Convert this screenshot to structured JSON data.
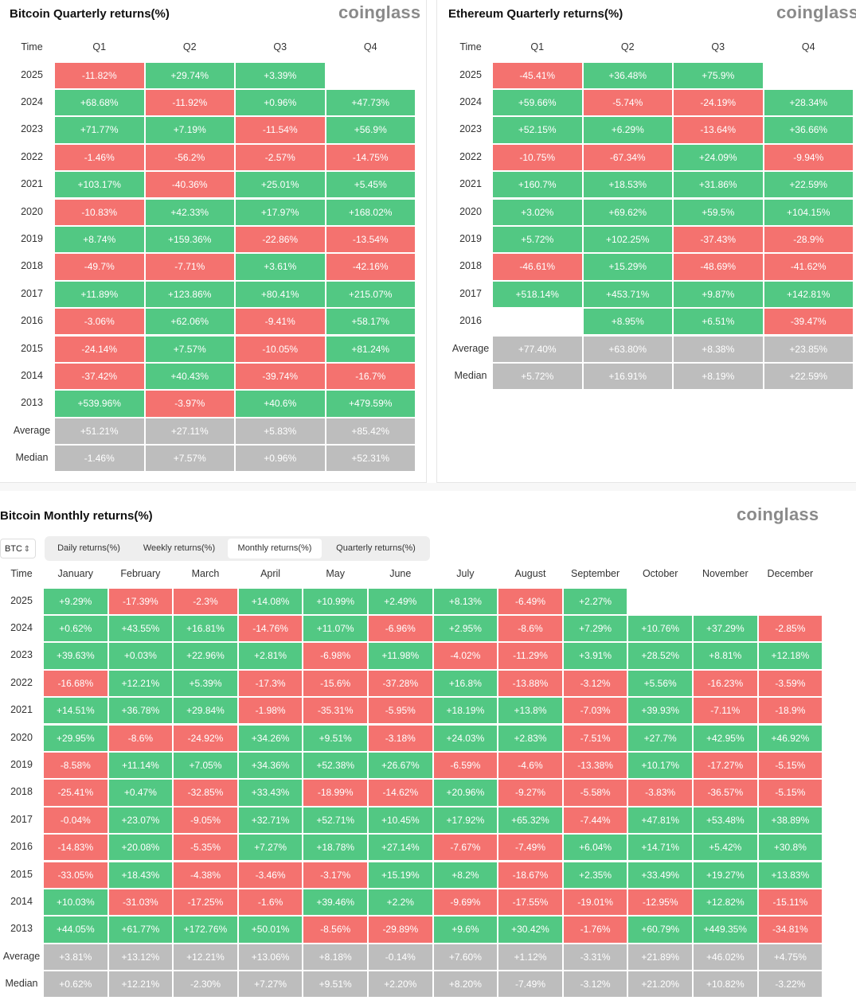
{
  "btc_quarterly": {
    "title": "Bitcoin Quarterly returns(%)",
    "logo": "coinglass",
    "time_label": "Time",
    "columns": [
      "Q1",
      "Q2",
      "Q3",
      "Q4"
    ],
    "rows": [
      {
        "label": "2025",
        "values": [
          "-11.82%",
          "+29.74%",
          "+3.39%",
          ""
        ]
      },
      {
        "label": "2024",
        "values": [
          "+68.68%",
          "-11.92%",
          "+0.96%",
          "+47.73%"
        ]
      },
      {
        "label": "2023",
        "values": [
          "+71.77%",
          "+7.19%",
          "-11.54%",
          "+56.9%"
        ]
      },
      {
        "label": "2022",
        "values": [
          "-1.46%",
          "-56.2%",
          "-2.57%",
          "-14.75%"
        ]
      },
      {
        "label": "2021",
        "values": [
          "+103.17%",
          "-40.36%",
          "+25.01%",
          "+5.45%"
        ]
      },
      {
        "label": "2020",
        "values": [
          "-10.83%",
          "+42.33%",
          "+17.97%",
          "+168.02%"
        ]
      },
      {
        "label": "2019",
        "values": [
          "+8.74%",
          "+159.36%",
          "-22.86%",
          "-13.54%"
        ]
      },
      {
        "label": "2018",
        "values": [
          "-49.7%",
          "-7.71%",
          "+3.61%",
          "-42.16%"
        ]
      },
      {
        "label": "2017",
        "values": [
          "+11.89%",
          "+123.86%",
          "+80.41%",
          "+215.07%"
        ]
      },
      {
        "label": "2016",
        "values": [
          "-3.06%",
          "+62.06%",
          "-9.41%",
          "+58.17%"
        ]
      },
      {
        "label": "2015",
        "values": [
          "-24.14%",
          "+7.57%",
          "-10.05%",
          "+81.24%"
        ]
      },
      {
        "label": "2014",
        "values": [
          "-37.42%",
          "+40.43%",
          "-39.74%",
          "-16.7%"
        ]
      },
      {
        "label": "2013",
        "values": [
          "+539.96%",
          "-3.97%",
          "+40.6%",
          "+479.59%"
        ]
      }
    ],
    "summary": [
      {
        "label": "Average",
        "values": [
          "+51.21%",
          "+27.11%",
          "+5.83%",
          "+85.42%"
        ]
      },
      {
        "label": "Median",
        "values": [
          "-1.46%",
          "+7.57%",
          "+0.96%",
          "+52.31%"
        ]
      }
    ]
  },
  "eth_quarterly": {
    "title": "Ethereum Quarterly returns(%)",
    "logo": "coinglass",
    "time_label": "Time",
    "columns": [
      "Q1",
      "Q2",
      "Q3",
      "Q4"
    ],
    "rows": [
      {
        "label": "2025",
        "values": [
          "-45.41%",
          "+36.48%",
          "+75.9%",
          ""
        ]
      },
      {
        "label": "2024",
        "values": [
          "+59.66%",
          "-5.74%",
          "-24.19%",
          "+28.34%"
        ]
      },
      {
        "label": "2023",
        "values": [
          "+52.15%",
          "+6.29%",
          "-13.64%",
          "+36.66%"
        ]
      },
      {
        "label": "2022",
        "values": [
          "-10.75%",
          "-67.34%",
          "+24.09%",
          "-9.94%"
        ]
      },
      {
        "label": "2021",
        "values": [
          "+160.7%",
          "+18.53%",
          "+31.86%",
          "+22.59%"
        ]
      },
      {
        "label": "2020",
        "values": [
          "+3.02%",
          "+69.62%",
          "+59.5%",
          "+104.15%"
        ]
      },
      {
        "label": "2019",
        "values": [
          "+5.72%",
          "+102.25%",
          "-37.43%",
          "-28.9%"
        ]
      },
      {
        "label": "2018",
        "values": [
          "-46.61%",
          "+15.29%",
          "-48.69%",
          "-41.62%"
        ]
      },
      {
        "label": "2017",
        "values": [
          "+518.14%",
          "+453.71%",
          "+9.87%",
          "+142.81%"
        ]
      },
      {
        "label": "2016",
        "values": [
          "",
          "+8.95%",
          "+6.51%",
          "-39.47%"
        ]
      }
    ],
    "summary": [
      {
        "label": "Average",
        "values": [
          "+77.40%",
          "+63.80%",
          "+8.38%",
          "+23.85%"
        ]
      },
      {
        "label": "Median",
        "values": [
          "+5.72%",
          "+16.91%",
          "+8.19%",
          "+22.59%"
        ]
      }
    ]
  },
  "btc_monthly": {
    "title": "Bitcoin Monthly returns(%)",
    "logo": "coinglass",
    "selector_value": "BTC",
    "tabs": [
      {
        "label": "Daily returns(%)",
        "active": false
      },
      {
        "label": "Weekly returns(%)",
        "active": false
      },
      {
        "label": "Monthly returns(%)",
        "active": true
      },
      {
        "label": "Quarterly returns(%)",
        "active": false
      }
    ],
    "time_label": "Time",
    "columns": [
      "January",
      "February",
      "March",
      "April",
      "May",
      "June",
      "July",
      "August",
      "September",
      "October",
      "November",
      "December"
    ],
    "rows": [
      {
        "label": "2025",
        "values": [
          "+9.29%",
          "-17.39%",
          "-2.3%",
          "+14.08%",
          "+10.99%",
          "+2.49%",
          "+8.13%",
          "-6.49%",
          "+2.27%",
          "",
          "",
          ""
        ]
      },
      {
        "label": "2024",
        "values": [
          "+0.62%",
          "+43.55%",
          "+16.81%",
          "-14.76%",
          "+11.07%",
          "-6.96%",
          "+2.95%",
          "-8.6%",
          "+7.29%",
          "+10.76%",
          "+37.29%",
          "-2.85%"
        ]
      },
      {
        "label": "2023",
        "values": [
          "+39.63%",
          "+0.03%",
          "+22.96%",
          "+2.81%",
          "-6.98%",
          "+11.98%",
          "-4.02%",
          "-11.29%",
          "+3.91%",
          "+28.52%",
          "+8.81%",
          "+12.18%"
        ]
      },
      {
        "label": "2022",
        "values": [
          "-16.68%",
          "+12.21%",
          "+5.39%",
          "-17.3%",
          "-15.6%",
          "-37.28%",
          "+16.8%",
          "-13.88%",
          "-3.12%",
          "+5.56%",
          "-16.23%",
          "-3.59%"
        ]
      },
      {
        "label": "2021",
        "values": [
          "+14.51%",
          "+36.78%",
          "+29.84%",
          "-1.98%",
          "-35.31%",
          "-5.95%",
          "+18.19%",
          "+13.8%",
          "-7.03%",
          "+39.93%",
          "-7.11%",
          "-18.9%"
        ]
      },
      {
        "label": "2020",
        "values": [
          "+29.95%",
          "-8.6%",
          "-24.92%",
          "+34.26%",
          "+9.51%",
          "-3.18%",
          "+24.03%",
          "+2.83%",
          "-7.51%",
          "+27.7%",
          "+42.95%",
          "+46.92%"
        ]
      },
      {
        "label": "2019",
        "values": [
          "-8.58%",
          "+11.14%",
          "+7.05%",
          "+34.36%",
          "+52.38%",
          "+26.67%",
          "-6.59%",
          "-4.6%",
          "-13.38%",
          "+10.17%",
          "-17.27%",
          "-5.15%"
        ]
      },
      {
        "label": "2018",
        "values": [
          "-25.41%",
          "+0.47%",
          "-32.85%",
          "+33.43%",
          "-18.99%",
          "-14.62%",
          "+20.96%",
          "-9.27%",
          "-5.58%",
          "-3.83%",
          "-36.57%",
          "-5.15%"
        ]
      },
      {
        "label": "2017",
        "values": [
          "-0.04%",
          "+23.07%",
          "-9.05%",
          "+32.71%",
          "+52.71%",
          "+10.45%",
          "+17.92%",
          "+65.32%",
          "-7.44%",
          "+47.81%",
          "+53.48%",
          "+38.89%"
        ]
      },
      {
        "label": "2016",
        "values": [
          "-14.83%",
          "+20.08%",
          "-5.35%",
          "+7.27%",
          "+18.78%",
          "+27.14%",
          "-7.67%",
          "-7.49%",
          "+6.04%",
          "+14.71%",
          "+5.42%",
          "+30.8%"
        ]
      },
      {
        "label": "2015",
        "values": [
          "-33.05%",
          "+18.43%",
          "-4.38%",
          "-3.46%",
          "-3.17%",
          "+15.19%",
          "+8.2%",
          "-18.67%",
          "+2.35%",
          "+33.49%",
          "+19.27%",
          "+13.83%"
        ]
      },
      {
        "label": "2014",
        "values": [
          "+10.03%",
          "-31.03%",
          "-17.25%",
          "-1.6%",
          "+39.46%",
          "+2.2%",
          "-9.69%",
          "-17.55%",
          "-19.01%",
          "-12.95%",
          "+12.82%",
          "-15.11%"
        ]
      },
      {
        "label": "2013",
        "values": [
          "+44.05%",
          "+61.77%",
          "+172.76%",
          "+50.01%",
          "-8.56%",
          "-29.89%",
          "+9.6%",
          "+30.42%",
          "-1.76%",
          "+60.79%",
          "+449.35%",
          "-34.81%"
        ]
      }
    ],
    "summary": [
      {
        "label": "Average",
        "values": [
          "+3.81%",
          "+13.12%",
          "+12.21%",
          "+13.06%",
          "+8.18%",
          "-0.14%",
          "+7.60%",
          "+1.12%",
          "-3.31%",
          "+21.89%",
          "+46.02%",
          "+4.75%"
        ]
      },
      {
        "label": "Median",
        "values": [
          "+0.62%",
          "+12.21%",
          "-2.30%",
          "+7.27%",
          "+9.51%",
          "+2.20%",
          "+8.20%",
          "-7.49%",
          "-3.12%",
          "+21.20%",
          "+10.82%",
          "-3.22%"
        ]
      }
    ]
  },
  "colors": {
    "positive": "#52c883",
    "negative": "#f4726f",
    "summary": "#bdbdbd"
  }
}
